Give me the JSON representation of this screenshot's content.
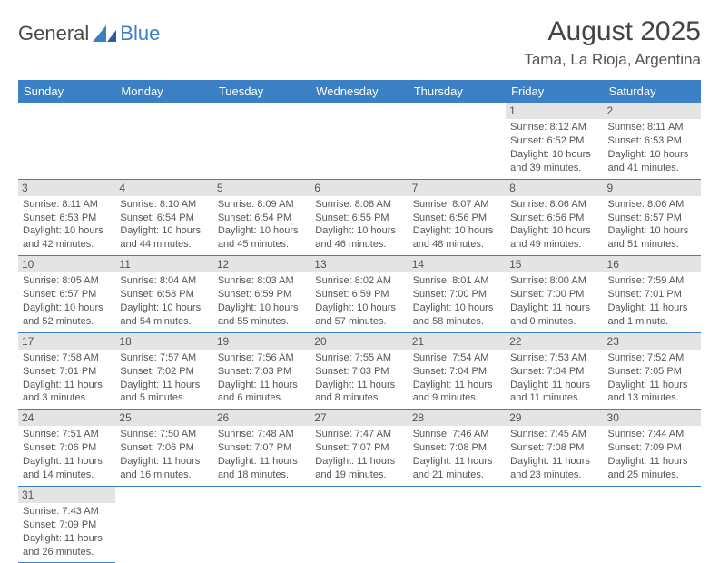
{
  "logo": {
    "word1": "General",
    "word2": "Blue",
    "sail_color": "#3b7fc4"
  },
  "header": {
    "month_title": "August 2025",
    "location": "Tama, La Rioja, Argentina"
  },
  "colors": {
    "header_bg": "#3b7fc4",
    "header_fg": "#ffffff",
    "daynum_bg": "#e4e4e4",
    "text": "#555555",
    "border": "#3b7fc4"
  },
  "day_headers": [
    "Sunday",
    "Monday",
    "Tuesday",
    "Wednesday",
    "Thursday",
    "Friday",
    "Saturday"
  ],
  "weeks": [
    [
      null,
      null,
      null,
      null,
      null,
      {
        "n": "1",
        "sr": "Sunrise: 8:12 AM",
        "ss": "Sunset: 6:52 PM",
        "dl1": "Daylight: 10 hours",
        "dl2": "and 39 minutes."
      },
      {
        "n": "2",
        "sr": "Sunrise: 8:11 AM",
        "ss": "Sunset: 6:53 PM",
        "dl1": "Daylight: 10 hours",
        "dl2": "and 41 minutes."
      }
    ],
    [
      {
        "n": "3",
        "sr": "Sunrise: 8:11 AM",
        "ss": "Sunset: 6:53 PM",
        "dl1": "Daylight: 10 hours",
        "dl2": "and 42 minutes."
      },
      {
        "n": "4",
        "sr": "Sunrise: 8:10 AM",
        "ss": "Sunset: 6:54 PM",
        "dl1": "Daylight: 10 hours",
        "dl2": "and 44 minutes."
      },
      {
        "n": "5",
        "sr": "Sunrise: 8:09 AM",
        "ss": "Sunset: 6:54 PM",
        "dl1": "Daylight: 10 hours",
        "dl2": "and 45 minutes."
      },
      {
        "n": "6",
        "sr": "Sunrise: 8:08 AM",
        "ss": "Sunset: 6:55 PM",
        "dl1": "Daylight: 10 hours",
        "dl2": "and 46 minutes."
      },
      {
        "n": "7",
        "sr": "Sunrise: 8:07 AM",
        "ss": "Sunset: 6:56 PM",
        "dl1": "Daylight: 10 hours",
        "dl2": "and 48 minutes."
      },
      {
        "n": "8",
        "sr": "Sunrise: 8:06 AM",
        "ss": "Sunset: 6:56 PM",
        "dl1": "Daylight: 10 hours",
        "dl2": "and 49 minutes."
      },
      {
        "n": "9",
        "sr": "Sunrise: 8:06 AM",
        "ss": "Sunset: 6:57 PM",
        "dl1": "Daylight: 10 hours",
        "dl2": "and 51 minutes."
      }
    ],
    [
      {
        "n": "10",
        "sr": "Sunrise: 8:05 AM",
        "ss": "Sunset: 6:57 PM",
        "dl1": "Daylight: 10 hours",
        "dl2": "and 52 minutes."
      },
      {
        "n": "11",
        "sr": "Sunrise: 8:04 AM",
        "ss": "Sunset: 6:58 PM",
        "dl1": "Daylight: 10 hours",
        "dl2": "and 54 minutes."
      },
      {
        "n": "12",
        "sr": "Sunrise: 8:03 AM",
        "ss": "Sunset: 6:59 PM",
        "dl1": "Daylight: 10 hours",
        "dl2": "and 55 minutes."
      },
      {
        "n": "13",
        "sr": "Sunrise: 8:02 AM",
        "ss": "Sunset: 6:59 PM",
        "dl1": "Daylight: 10 hours",
        "dl2": "and 57 minutes."
      },
      {
        "n": "14",
        "sr": "Sunrise: 8:01 AM",
        "ss": "Sunset: 7:00 PM",
        "dl1": "Daylight: 10 hours",
        "dl2": "and 58 minutes."
      },
      {
        "n": "15",
        "sr": "Sunrise: 8:00 AM",
        "ss": "Sunset: 7:00 PM",
        "dl1": "Daylight: 11 hours",
        "dl2": "and 0 minutes."
      },
      {
        "n": "16",
        "sr": "Sunrise: 7:59 AM",
        "ss": "Sunset: 7:01 PM",
        "dl1": "Daylight: 11 hours",
        "dl2": "and 1 minute."
      }
    ],
    [
      {
        "n": "17",
        "sr": "Sunrise: 7:58 AM",
        "ss": "Sunset: 7:01 PM",
        "dl1": "Daylight: 11 hours",
        "dl2": "and 3 minutes."
      },
      {
        "n": "18",
        "sr": "Sunrise: 7:57 AM",
        "ss": "Sunset: 7:02 PM",
        "dl1": "Daylight: 11 hours",
        "dl2": "and 5 minutes."
      },
      {
        "n": "19",
        "sr": "Sunrise: 7:56 AM",
        "ss": "Sunset: 7:03 PM",
        "dl1": "Daylight: 11 hours",
        "dl2": "and 6 minutes."
      },
      {
        "n": "20",
        "sr": "Sunrise: 7:55 AM",
        "ss": "Sunset: 7:03 PM",
        "dl1": "Daylight: 11 hours",
        "dl2": "and 8 minutes."
      },
      {
        "n": "21",
        "sr": "Sunrise: 7:54 AM",
        "ss": "Sunset: 7:04 PM",
        "dl1": "Daylight: 11 hours",
        "dl2": "and 9 minutes."
      },
      {
        "n": "22",
        "sr": "Sunrise: 7:53 AM",
        "ss": "Sunset: 7:04 PM",
        "dl1": "Daylight: 11 hours",
        "dl2": "and 11 minutes."
      },
      {
        "n": "23",
        "sr": "Sunrise: 7:52 AM",
        "ss": "Sunset: 7:05 PM",
        "dl1": "Daylight: 11 hours",
        "dl2": "and 13 minutes."
      }
    ],
    [
      {
        "n": "24",
        "sr": "Sunrise: 7:51 AM",
        "ss": "Sunset: 7:06 PM",
        "dl1": "Daylight: 11 hours",
        "dl2": "and 14 minutes."
      },
      {
        "n": "25",
        "sr": "Sunrise: 7:50 AM",
        "ss": "Sunset: 7:06 PM",
        "dl1": "Daylight: 11 hours",
        "dl2": "and 16 minutes."
      },
      {
        "n": "26",
        "sr": "Sunrise: 7:48 AM",
        "ss": "Sunset: 7:07 PM",
        "dl1": "Daylight: 11 hours",
        "dl2": "and 18 minutes."
      },
      {
        "n": "27",
        "sr": "Sunrise: 7:47 AM",
        "ss": "Sunset: 7:07 PM",
        "dl1": "Daylight: 11 hours",
        "dl2": "and 19 minutes."
      },
      {
        "n": "28",
        "sr": "Sunrise: 7:46 AM",
        "ss": "Sunset: 7:08 PM",
        "dl1": "Daylight: 11 hours",
        "dl2": "and 21 minutes."
      },
      {
        "n": "29",
        "sr": "Sunrise: 7:45 AM",
        "ss": "Sunset: 7:08 PM",
        "dl1": "Daylight: 11 hours",
        "dl2": "and 23 minutes."
      },
      {
        "n": "30",
        "sr": "Sunrise: 7:44 AM",
        "ss": "Sunset: 7:09 PM",
        "dl1": "Daylight: 11 hours",
        "dl2": "and 25 minutes."
      }
    ],
    [
      {
        "n": "31",
        "sr": "Sunrise: 7:43 AM",
        "ss": "Sunset: 7:09 PM",
        "dl1": "Daylight: 11 hours",
        "dl2": "and 26 minutes."
      },
      null,
      null,
      null,
      null,
      null,
      null
    ]
  ]
}
